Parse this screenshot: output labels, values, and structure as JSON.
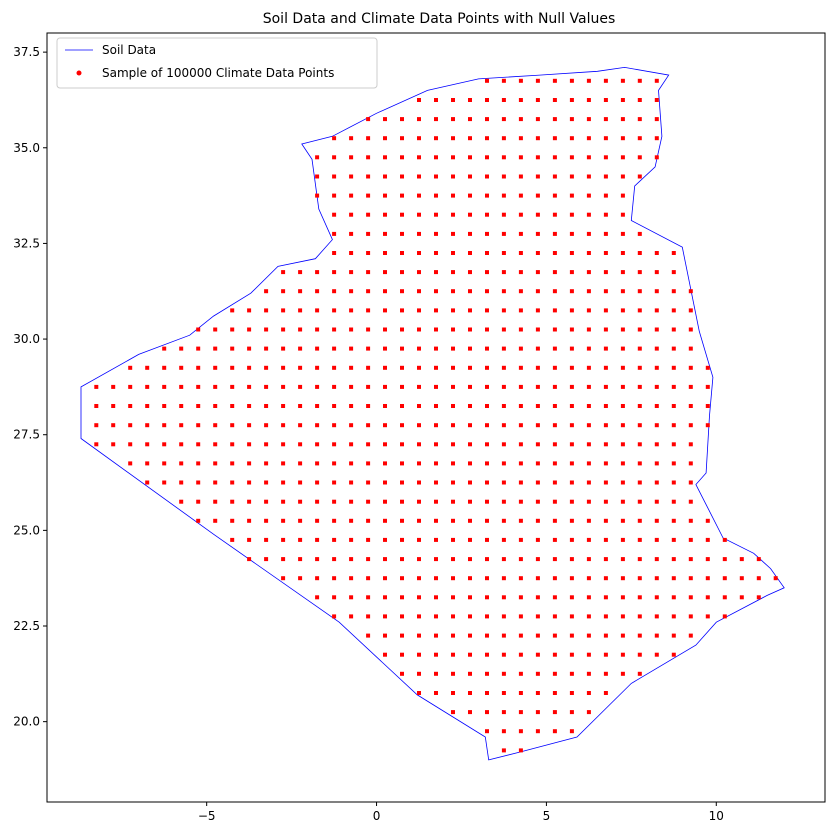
{
  "chart_data": {
    "type": "scatter",
    "title": "Soil Data and Climate Data Points with Null Values",
    "xlabel": "",
    "ylabel": "",
    "xlim": [
      -9.7,
      13.2
    ],
    "ylim": [
      17.9,
      38.0
    ],
    "x_ticks": [
      -5,
      0,
      5,
      10
    ],
    "x_tick_labels": [
      "−5",
      "0",
      "5",
      "10"
    ],
    "y_ticks": [
      20.0,
      22.5,
      25.0,
      27.5,
      30.0,
      32.5,
      35.0,
      37.5
    ],
    "y_tick_labels": [
      "20.0",
      "22.5",
      "25.0",
      "27.5",
      "30.0",
      "32.5",
      "35.0",
      "37.5"
    ],
    "grid": false,
    "legend_position": "top-left",
    "series": [
      {
        "name": "Soil Data",
        "kind": "polygon-outline",
        "color": "#0000ff",
        "outline": [
          [
            -8.7,
            27.4
          ],
          [
            -8.7,
            28.75
          ],
          [
            -7.0,
            29.6
          ],
          [
            -5.5,
            30.1
          ],
          [
            -4.8,
            30.6
          ],
          [
            -3.7,
            31.2
          ],
          [
            -2.9,
            31.9
          ],
          [
            -1.8,
            32.1
          ],
          [
            -1.3,
            32.6
          ],
          [
            -1.7,
            33.4
          ],
          [
            -1.9,
            34.7
          ],
          [
            -2.2,
            35.1
          ],
          [
            -1.3,
            35.3
          ],
          [
            0.0,
            35.9
          ],
          [
            1.5,
            36.5
          ],
          [
            3.0,
            36.8
          ],
          [
            4.8,
            36.9
          ],
          [
            6.5,
            37.0
          ],
          [
            7.3,
            37.1
          ],
          [
            8.6,
            36.9
          ],
          [
            8.3,
            36.5
          ],
          [
            8.4,
            35.3
          ],
          [
            8.2,
            34.5
          ],
          [
            7.6,
            34.0
          ],
          [
            7.5,
            33.1
          ],
          [
            9.0,
            32.4
          ],
          [
            9.5,
            30.2
          ],
          [
            9.9,
            29.0
          ],
          [
            9.8,
            28.0
          ],
          [
            9.7,
            26.5
          ],
          [
            9.4,
            26.2
          ],
          [
            10.2,
            24.8
          ],
          [
            11.1,
            24.4
          ],
          [
            11.6,
            24.0
          ],
          [
            12.0,
            23.5
          ],
          [
            11.5,
            23.3
          ],
          [
            10.0,
            22.6
          ],
          [
            9.4,
            22.0
          ],
          [
            7.5,
            21.0
          ],
          [
            5.9,
            19.6
          ],
          [
            4.2,
            19.2
          ],
          [
            3.3,
            19.0
          ],
          [
            3.2,
            19.6
          ],
          [
            1.2,
            20.7
          ],
          [
            -1.1,
            22.6
          ],
          [
            -4.8,
            24.9
          ],
          [
            -8.7,
            27.4
          ]
        ]
      },
      {
        "name": "Sample of 100000 Climate Data Points",
        "kind": "scatter-grid",
        "color": "#ff0000",
        "grid_spacing_deg": 0.5,
        "grid_x_start": -8.25,
        "grid_y_start": 19.25,
        "grid_x_end": 11.75,
        "grid_y_end": 36.75
      }
    ]
  }
}
